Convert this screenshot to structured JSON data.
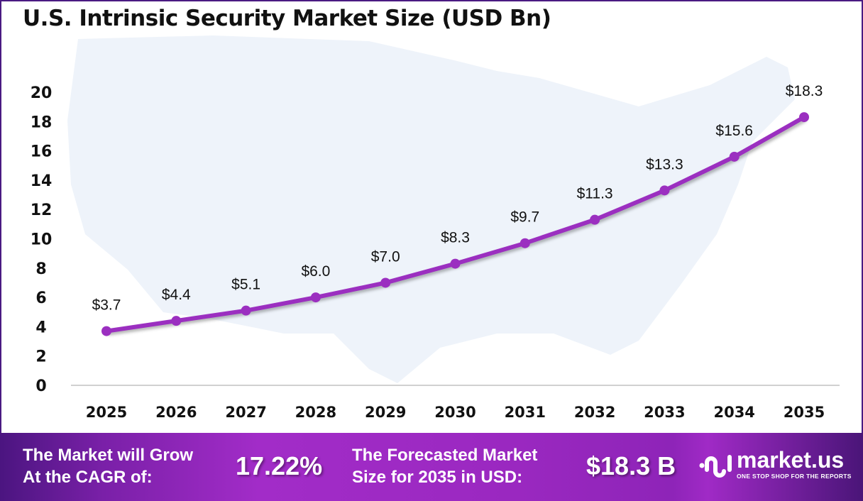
{
  "chart_data": {
    "type": "line",
    "title": "U.S. Intrinsic Security Market Size (USD Bn)",
    "categories": [
      "2025",
      "2026",
      "2027",
      "2028",
      "2029",
      "2030",
      "2031",
      "2032",
      "2033",
      "2034",
      "2035"
    ],
    "values": [
      3.7,
      4.4,
      5.1,
      6.0,
      7.0,
      8.3,
      9.7,
      11.3,
      13.3,
      15.6,
      18.3
    ],
    "data_labels": [
      "$3.7",
      "$4.4",
      "$5.1",
      "$6.0",
      "$7.0",
      "$8.3",
      "$9.7",
      "$11.3",
      "$13.3",
      "$15.6",
      "$18.3"
    ],
    "yticks": [
      "0",
      "2",
      "4",
      "6",
      "8",
      "10",
      "12",
      "14",
      "16",
      "18",
      "20"
    ],
    "ylim": [
      0,
      20
    ],
    "grid": false,
    "line_color": "#9b2fc0"
  },
  "footer": {
    "cagr_label_1": "The Market will Grow",
    "cagr_label_2": "At the CAGR of:",
    "cagr_value": "17.22%",
    "forecast_label_1": "The Forecasted Market",
    "forecast_label_2": "Size for 2035 in USD:",
    "forecast_value": "$18.3 B",
    "logo_name": "market.us",
    "logo_tagline": "ONE STOP SHOP FOR THE REPORTS"
  }
}
